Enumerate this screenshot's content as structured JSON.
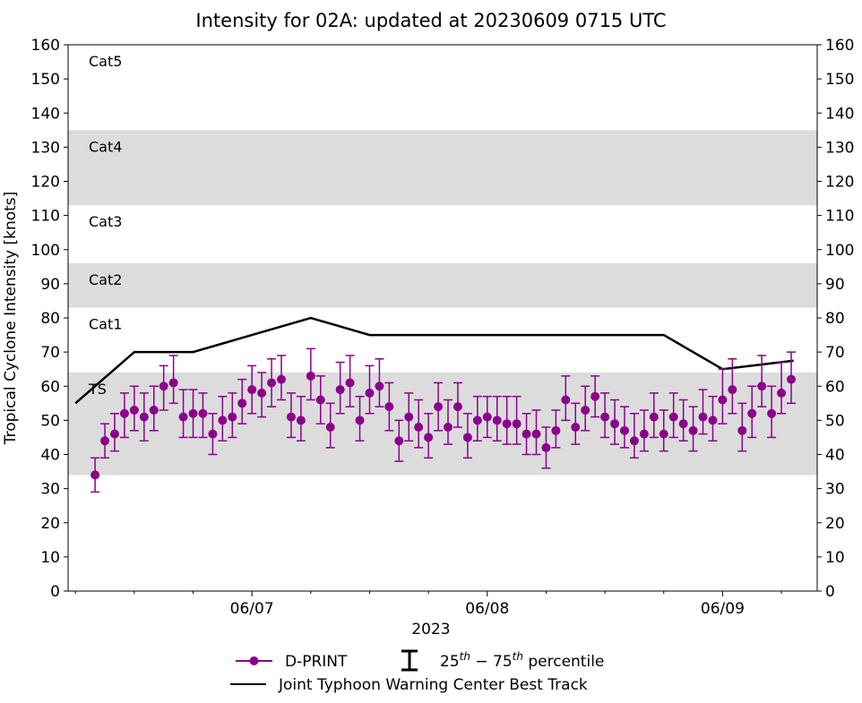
{
  "chart_data": {
    "type": "scatter",
    "title": "Intensity for 02A: updated at 20230609 0715 UTC",
    "xlabel": "2023",
    "ylabel": "Tropical Cyclone Intensity [knots]",
    "ylim": [
      0,
      160
    ],
    "yticks": [
      0,
      10,
      20,
      30,
      40,
      50,
      60,
      70,
      80,
      90,
      100,
      110,
      120,
      130,
      140,
      150,
      160
    ],
    "xlim_hours_from_0606_00Z": [
      5.25,
      81.65
    ],
    "xticks": [
      {
        "label": "06/07",
        "hours": 24
      },
      {
        "label": "06/08",
        "hours": 48
      },
      {
        "label": "06/09",
        "hours": 72
      }
    ],
    "x_minor_tick_interval_hours": 6,
    "grid": false,
    "categories": [
      {
        "label": "TS",
        "low": 34,
        "high": 64,
        "shaded": true
      },
      {
        "label": "Cat1",
        "low": 64,
        "high": 83,
        "shaded": false
      },
      {
        "label": "Cat2",
        "low": 83,
        "high": 96,
        "shaded": true
      },
      {
        "label": "Cat3",
        "low": 96,
        "high": 113,
        "shaded": false
      },
      {
        "label": "Cat4",
        "low": 113,
        "high": 135,
        "shaded": true
      },
      {
        "label": "Cat5",
        "low": 135,
        "high": 160,
        "shaded": false
      }
    ],
    "series": [
      {
        "name": "D-PRINT",
        "color": "#8b008b",
        "time_start_hours": 8,
        "time_step_hours": 1,
        "values": [
          34,
          44,
          46,
          52,
          53,
          51,
          53,
          60,
          61,
          51,
          52,
          52,
          46,
          50,
          51,
          55,
          59,
          58,
          61,
          62,
          51,
          50,
          63,
          56,
          48,
          59,
          61,
          50,
          58,
          60,
          54,
          44,
          51,
          48,
          45,
          54,
          48,
          54,
          45,
          50,
          51,
          50,
          49,
          49,
          46,
          46,
          42,
          47,
          56,
          48,
          53,
          57,
          51,
          49,
          47,
          44,
          46,
          51,
          46,
          51,
          49,
          47,
          51,
          50,
          56,
          59,
          47,
          52,
          60,
          52,
          58,
          62
        ],
        "p25": [
          29,
          39,
          41,
          45,
          47,
          44,
          47,
          53,
          55,
          45,
          45,
          45,
          40,
          44,
          45,
          49,
          52,
          51,
          54,
          56,
          45,
          44,
          56,
          49,
          42,
          52,
          54,
          44,
          52,
          54,
          47,
          38,
          44,
          42,
          39,
          47,
          43,
          48,
          39,
          44,
          45,
          44,
          43,
          43,
          40,
          40,
          36,
          42,
          50,
          43,
          47,
          51,
          45,
          43,
          42,
          39,
          41,
          45,
          41,
          45,
          44,
          41,
          46,
          44,
          49,
          52,
          41,
          45,
          54,
          45,
          52,
          55
        ],
        "p75": [
          39,
          49,
          52,
          58,
          60,
          58,
          60,
          66,
          69,
          59,
          59,
          58,
          52,
          57,
          58,
          62,
          66,
          64,
          68,
          69,
          58,
          57,
          71,
          63,
          55,
          67,
          69,
          57,
          66,
          68,
          61,
          50,
          58,
          56,
          52,
          61,
          56,
          61,
          52,
          57,
          57,
          57,
          57,
          57,
          52,
          53,
          48,
          53,
          63,
          55,
          60,
          63,
          58,
          56,
          54,
          52,
          53,
          58,
          53,
          58,
          56,
          54,
          59,
          57,
          65,
          68,
          55,
          60,
          69,
          60,
          67,
          70
        ]
      },
      {
        "name": "Joint Typhoon Warning Center Best Track",
        "color": "#000000",
        "points": [
          {
            "hours": 6,
            "value": 55
          },
          {
            "hours": 12,
            "value": 70
          },
          {
            "hours": 18,
            "value": 70
          },
          {
            "hours": 30,
            "value": 80
          },
          {
            "hours": 36,
            "value": 75
          },
          {
            "hours": 66,
            "value": 75
          },
          {
            "hours": 72,
            "value": 65
          },
          {
            "hours": 79.25,
            "value": 67.5
          }
        ]
      }
    ],
    "legend": {
      "position": "bottom-center",
      "dprint_label": "D-PRINT",
      "percentile_base": "25",
      "percentile_sup1": "th",
      "percentile_dash": " − 75",
      "percentile_sup2": "th",
      "percentile_rest": " percentile",
      "best_track_label": "Joint Typhoon Warning Center Best Track"
    }
  }
}
